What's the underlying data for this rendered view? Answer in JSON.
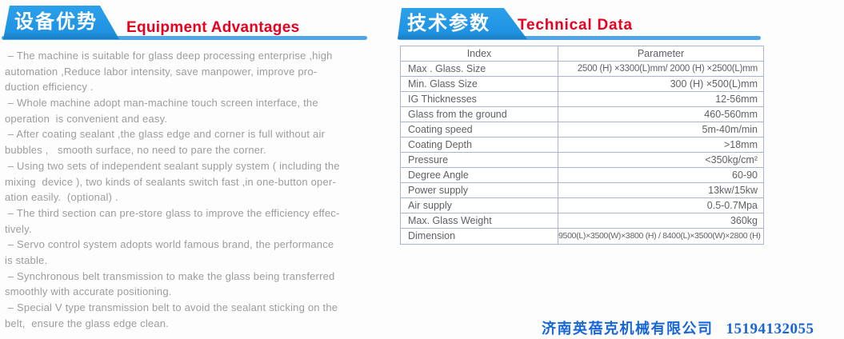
{
  "left_section": {
    "title_cn": "设备优势",
    "title_en": "Equipment Advantages",
    "body_lines": [
      " – The machine is suitable for glass deep processing enterprise ,high",
      "automation ,Reduce labor intensity, save manpower, improve pro-",
      "duction efficiency .",
      " – Whole machine adopt man-machine touch screen interface, the",
      "operation  is convenient and easy.",
      " – After coating sealant ,the glass edge and corner is full without air",
      "bubbles ,   smooth surface, no need to pare the corner.",
      " – Using two sets of independent sealant supply system ( including the",
      "mixing  device ), two kinds of sealants switch fast ,in one-button oper-",
      "ation easily.  (optional) .",
      " – The third section can pre-store glass to improve the efficiency effec-",
      "tively.",
      " – Servo control system adopts world famous brand, the performance",
      "is stable.",
      " – Synchronous belt transmission to make the glass being transferred",
      "smoothly with accurate positioning.",
      " – Special V type transmission belt to avoid the sealant sticking on the",
      "belt,  ensure the glass edge clean."
    ]
  },
  "right_section": {
    "title_cn": "技术参数",
    "title_en": "Technical Data",
    "table": {
      "headers": {
        "index": "Index",
        "parameter": "Parameter"
      },
      "rows": [
        {
          "index": "Max . Glass. Size",
          "parameter": "2500 (H) ×3300(L)mm/ 2000 (H) ×2500(L)mm"
        },
        {
          "index": "Min. Glass Size",
          "parameter": "300 (H) ×500(L)mm"
        },
        {
          "index": "IG Thicknesses",
          "parameter": "12-56mm"
        },
        {
          "index": "Glass from the ground",
          "parameter": "460-560mm"
        },
        {
          "index": "Coating speed",
          "parameter": "5m-40m/min"
        },
        {
          "index": "Coating Depth",
          "parameter": ">18mm"
        },
        {
          "index": "Pressure",
          "parameter": "<350kg/cm²"
        },
        {
          "index": "Degree Angle",
          "parameter": "60-90"
        },
        {
          "index": "Power supply",
          "parameter": "13kw/15kw"
        },
        {
          "index": "Air supply",
          "parameter": "0.5-0.7Mpa"
        },
        {
          "index": "Max. Glass Weight",
          "parameter": "360kg"
        },
        {
          "index": "Dimension",
          "parameter": "9500(L)×3500(W)×3800 (H) / 8400(L)×3500(W)×2800 (H)"
        }
      ]
    }
  },
  "footer": {
    "company": "济南英蓓克机械有限公司",
    "phone": "15194132055"
  },
  "colors": {
    "banner_blue": "#2196e3",
    "underline_blue": "#4ea6e8",
    "title_red": "#e80021",
    "table_border": "#a7b4d6",
    "table_text": "#5f5f68",
    "body_text": "#9c9c9c",
    "footer_blue": "#1766d8"
  }
}
